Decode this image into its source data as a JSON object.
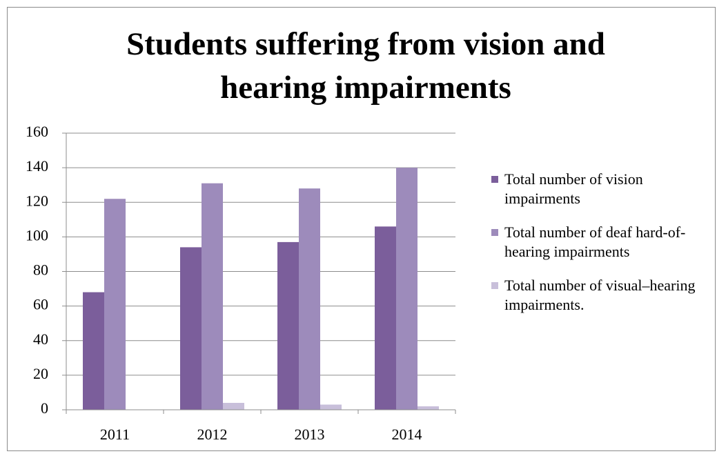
{
  "chart_data": {
    "type": "bar",
    "title": "Students suffering from vision and hearing impairments",
    "categories": [
      "2011",
      "2012",
      "2013",
      "2014"
    ],
    "series": [
      {
        "name": "Total number of vision impairments",
        "color": "#7b5e9b",
        "values": [
          68,
          94,
          97,
          106
        ]
      },
      {
        "name": "Total number of deaf hard-of-hearing impairments",
        "color": "#9d8bbb",
        "values": [
          122,
          131,
          128,
          140
        ]
      },
      {
        "name": "Total number of visual–hearing impairments.",
        "color": "#c8bfda",
        "values": [
          0,
          4,
          3,
          2
        ]
      }
    ],
    "ylim": [
      0,
      160
    ],
    "yticks": [
      0,
      20,
      40,
      60,
      80,
      100,
      120,
      140,
      160
    ],
    "grid": true,
    "legend": "right"
  }
}
